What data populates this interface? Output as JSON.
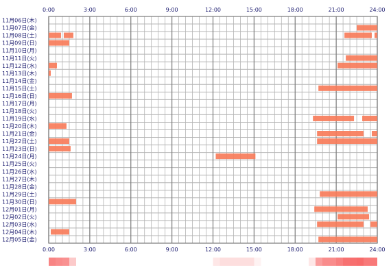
{
  "chart_data": {
    "type": "timeline",
    "x_ticks": [
      "0:00",
      "3:00",
      "6:00",
      "9:00",
      "12:00",
      "15:00",
      "18:00",
      "21:00",
      "24:00"
    ],
    "x_range_hours": [
      0,
      24
    ],
    "rows": [
      {
        "label": "11月06日(木)",
        "segments": []
      },
      {
        "label": "11月07日(金)",
        "segments": [
          [
            22.5,
            24
          ]
        ]
      },
      {
        "label": "11月08日(土)",
        "segments": [
          [
            0,
            0.9
          ],
          [
            1.1,
            1.8
          ],
          [
            21.6,
            23.6
          ],
          [
            23.8,
            24
          ]
        ]
      },
      {
        "label": "11月09日(日)",
        "segments": [
          [
            0,
            1.5
          ]
        ]
      },
      {
        "label": "11月10日(月)",
        "segments": []
      },
      {
        "label": "11月11日(火)",
        "segments": [
          [
            21.7,
            24
          ]
        ]
      },
      {
        "label": "11月12日(水)",
        "segments": [
          [
            0,
            0.6
          ],
          [
            21.1,
            24
          ]
        ]
      },
      {
        "label": "11月13日(木)",
        "segments": [
          [
            0,
            0.15
          ]
        ]
      },
      {
        "label": "11月14日(金)",
        "segments": []
      },
      {
        "label": "11月15日(土)",
        "segments": [
          [
            19.7,
            24
          ]
        ]
      },
      {
        "label": "11月16日(日)",
        "segments": [
          [
            0,
            1.7
          ]
        ]
      },
      {
        "label": "11月17日(月)",
        "segments": []
      },
      {
        "label": "11月18日(火)",
        "segments": []
      },
      {
        "label": "11月19日(水)",
        "segments": [
          [
            19.3,
            22.3
          ],
          [
            22.9,
            24
          ]
        ]
      },
      {
        "label": "11月20日(木)",
        "segments": [
          [
            0,
            1.3
          ]
        ]
      },
      {
        "label": "11月21日(金)",
        "segments": [
          [
            19.6,
            23
          ],
          [
            23.6,
            24
          ]
        ]
      },
      {
        "label": "11月22日(土)",
        "segments": [
          [
            0,
            1.5
          ],
          [
            19.6,
            24
          ]
        ]
      },
      {
        "label": "11月23日(日)",
        "segments": [
          [
            0,
            1.6
          ]
        ]
      },
      {
        "label": "11月24日(月)",
        "segments": [
          [
            12.2,
            15.1
          ]
        ]
      },
      {
        "label": "11月25日(火)",
        "segments": []
      },
      {
        "label": "11月26日(水)",
        "segments": []
      },
      {
        "label": "11月27日(木)",
        "segments": []
      },
      {
        "label": "11月28日(金)",
        "segments": []
      },
      {
        "label": "11月29日(土)",
        "segments": [
          [
            19.8,
            24
          ]
        ]
      },
      {
        "label": "11月30日(日)",
        "segments": [
          [
            0,
            2
          ]
        ]
      },
      {
        "label": "12月01日(月)",
        "segments": [
          [
            19.4,
            23.3
          ]
        ]
      },
      {
        "label": "12月02日(火)",
        "segments": [
          [
            21.1,
            23.4
          ]
        ]
      },
      {
        "label": "12月03日(水)",
        "segments": [
          [
            19.6,
            23
          ],
          [
            23.5,
            24
          ]
        ]
      },
      {
        "label": "12月04日(木)",
        "segments": [
          [
            0.15,
            1.5
          ]
        ]
      },
      {
        "label": "12月05日(金)",
        "segments": [
          [
            19.7,
            24
          ]
        ]
      }
    ],
    "colors": {
      "bar": "#f77c5a",
      "grid_minor": "#b4b4b4",
      "grid_major": "#7a7a7a",
      "label": "#1a1a6e",
      "heat_low": "#ffffff",
      "heat_high": "#f76b6b"
    },
    "summary_strip": "frequency heat strip, 0:00-24:00"
  }
}
